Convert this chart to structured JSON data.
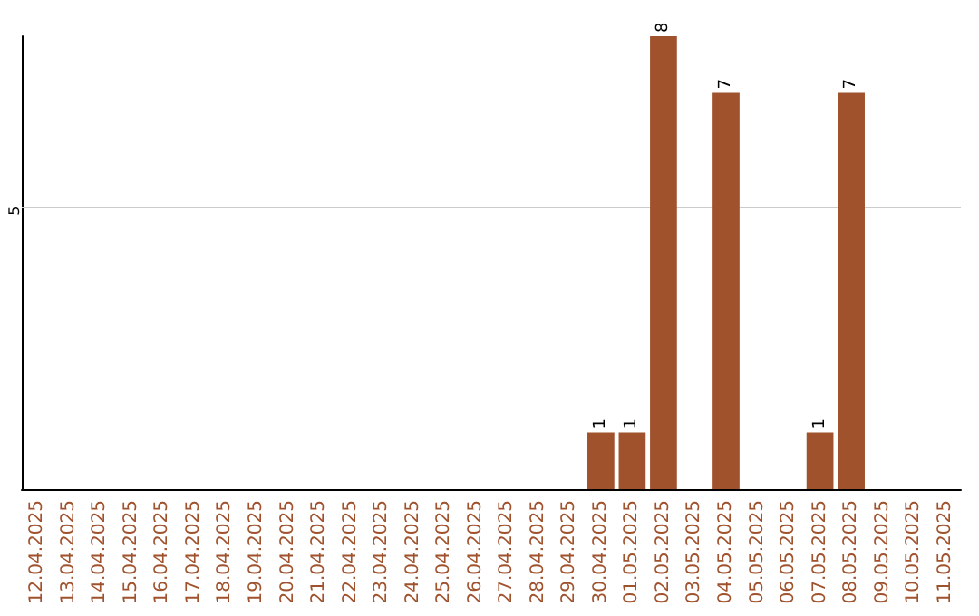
{
  "chart_data": {
    "type": "bar",
    "categories": [
      "12.04.2025",
      "13.04.2025",
      "14.04.2025",
      "15.04.2025",
      "16.04.2025",
      "17.04.2025",
      "18.04.2025",
      "19.04.2025",
      "20.04.2025",
      "21.04.2025",
      "22.04.2025",
      "23.04.2025",
      "24.04.2025",
      "25.04.2025",
      "26.04.2025",
      "27.04.2025",
      "28.04.2025",
      "29.04.2025",
      "30.04.2025",
      "01.05.2025",
      "02.05.2025",
      "03.05.2025",
      "04.05.2025",
      "05.05.2025",
      "06.05.2025",
      "07.05.2025",
      "08.05.2025",
      "09.05.2025",
      "10.05.2025",
      "11.05.2025"
    ],
    "values": [
      null,
      null,
      null,
      null,
      null,
      null,
      null,
      null,
      null,
      null,
      null,
      null,
      null,
      null,
      null,
      null,
      null,
      null,
      1,
      1,
      8,
      null,
      7,
      null,
      null,
      1,
      7,
      null,
      null,
      null
    ],
    "value_labels": [
      null,
      null,
      null,
      null,
      null,
      null,
      null,
      null,
      null,
      null,
      null,
      null,
      null,
      null,
      null,
      null,
      null,
      null,
      "1",
      "1",
      "8",
      null,
      "7",
      null,
      null,
      "1",
      "7",
      null,
      null,
      null
    ],
    "color": "#a0522d",
    "ylim": [
      0,
      8
    ],
    "ref_lines": [
      {
        "axis": "y",
        "value": 5,
        "label": "5",
        "color": "#cccccc"
      }
    ]
  }
}
